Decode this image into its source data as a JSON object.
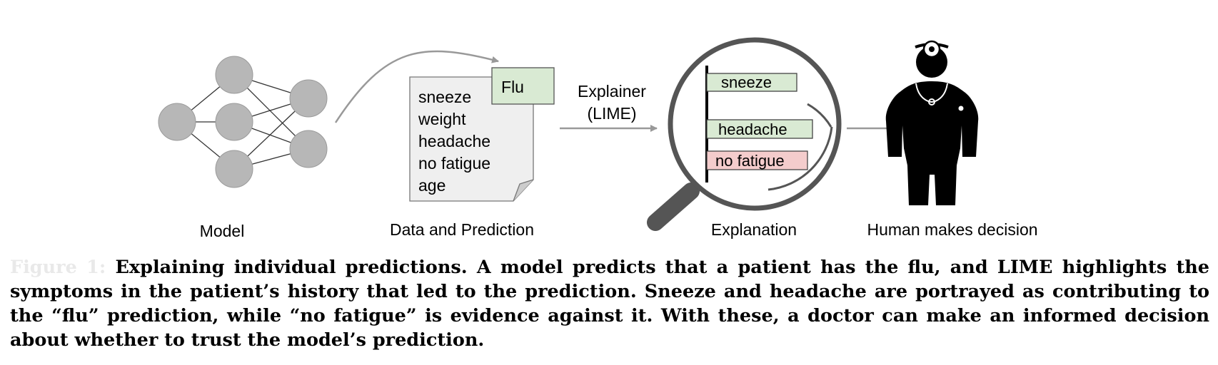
{
  "model": {
    "label": "Model"
  },
  "data_prediction": {
    "label": "Data and Prediction",
    "prediction": "Flu",
    "features": [
      "sneeze",
      "weight",
      "headache",
      "no fatigue",
      "age"
    ]
  },
  "explainer": {
    "line1": "Explainer",
    "line2": "(LIME)"
  },
  "explanation": {
    "label": "Explanation",
    "bars": [
      {
        "label": "sneeze",
        "effect": "supports",
        "color": "#d9ead3"
      },
      {
        "label": "headache",
        "effect": "supports",
        "color": "#d9ead3"
      },
      {
        "label": "no fatigue",
        "effect": "contradicts",
        "color": "#f4cccc"
      }
    ]
  },
  "human": {
    "label": "Human makes decision"
  },
  "caption": {
    "lead": "Figure 1:",
    "text": "Explaining individual predictions. A model predicts that a patient has the flu, and LIME highlights the symptoms in the patient’s history that led to the prediction. Sneeze and headache are portrayed as contributing to the “flu” prediction, while “no fatigue” is evidence against it. With these, a doctor can make an informed decision about whether to trust the model’s prediction."
  },
  "colors": {
    "node": "#b7b7b7",
    "arrow": "#999999",
    "lens_ring": "#555555"
  }
}
